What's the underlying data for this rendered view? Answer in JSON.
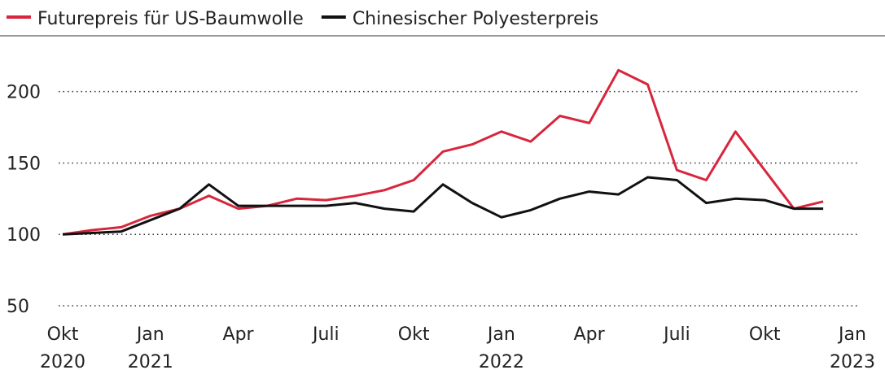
{
  "chart_data": {
    "type": "line",
    "x": [
      "2020-10",
      "2020-11",
      "2020-12",
      "2021-01",
      "2021-02",
      "2021-03",
      "2021-04",
      "2021-05",
      "2021-06",
      "2021-07",
      "2021-08",
      "2021-09",
      "2021-10",
      "2021-11",
      "2021-12",
      "2022-01",
      "2022-02",
      "2022-03",
      "2022-04",
      "2022-05",
      "2022-06",
      "2022-07",
      "2022-08",
      "2022-09",
      "2022-10",
      "2022-11",
      "2022-12"
    ],
    "series": [
      {
        "name": "Futurepreis für US-Baumwolle",
        "color": "#d7263d",
        "values": [
          100,
          103,
          105,
          113,
          118,
          127,
          118,
          120,
          125,
          124,
          127,
          131,
          138,
          158,
          163,
          172,
          165,
          183,
          178,
          215,
          205,
          145,
          138,
          172,
          145,
          118,
          123
        ]
      },
      {
        "name": "Chinesischer Polyesterpreis",
        "color": "#111111",
        "values": [
          100,
          101,
          102,
          110,
          118,
          135,
          120,
          120,
          120,
          120,
          122,
          118,
          116,
          135,
          122,
          112,
          117,
          125,
          130,
          128,
          140,
          138,
          122,
          125,
          124,
          118,
          118
        ]
      }
    ],
    "xlim": [
      "2020-10",
      "2023-01"
    ],
    "xticks": [
      {
        "value": "2020-10",
        "label": "Okt 2020"
      },
      {
        "value": "2021-01",
        "label": "Jan 2021"
      },
      {
        "value": "2021-04",
        "label": "Apr"
      },
      {
        "value": "2021-07",
        "label": "Juli"
      },
      {
        "value": "2021-10",
        "label": "Okt"
      },
      {
        "value": "2022-01",
        "label": "Jan 2022"
      },
      {
        "value": "2022-04",
        "label": "Apr"
      },
      {
        "value": "2022-07",
        "label": "Juli"
      },
      {
        "value": "2022-10",
        "label": "Okt"
      },
      {
        "value": "2023-01",
        "label": "Jan 2023"
      }
    ],
    "ylim": [
      50,
      230
    ],
    "yticks": [
      50,
      100,
      150,
      200
    ],
    "grid": true
  }
}
